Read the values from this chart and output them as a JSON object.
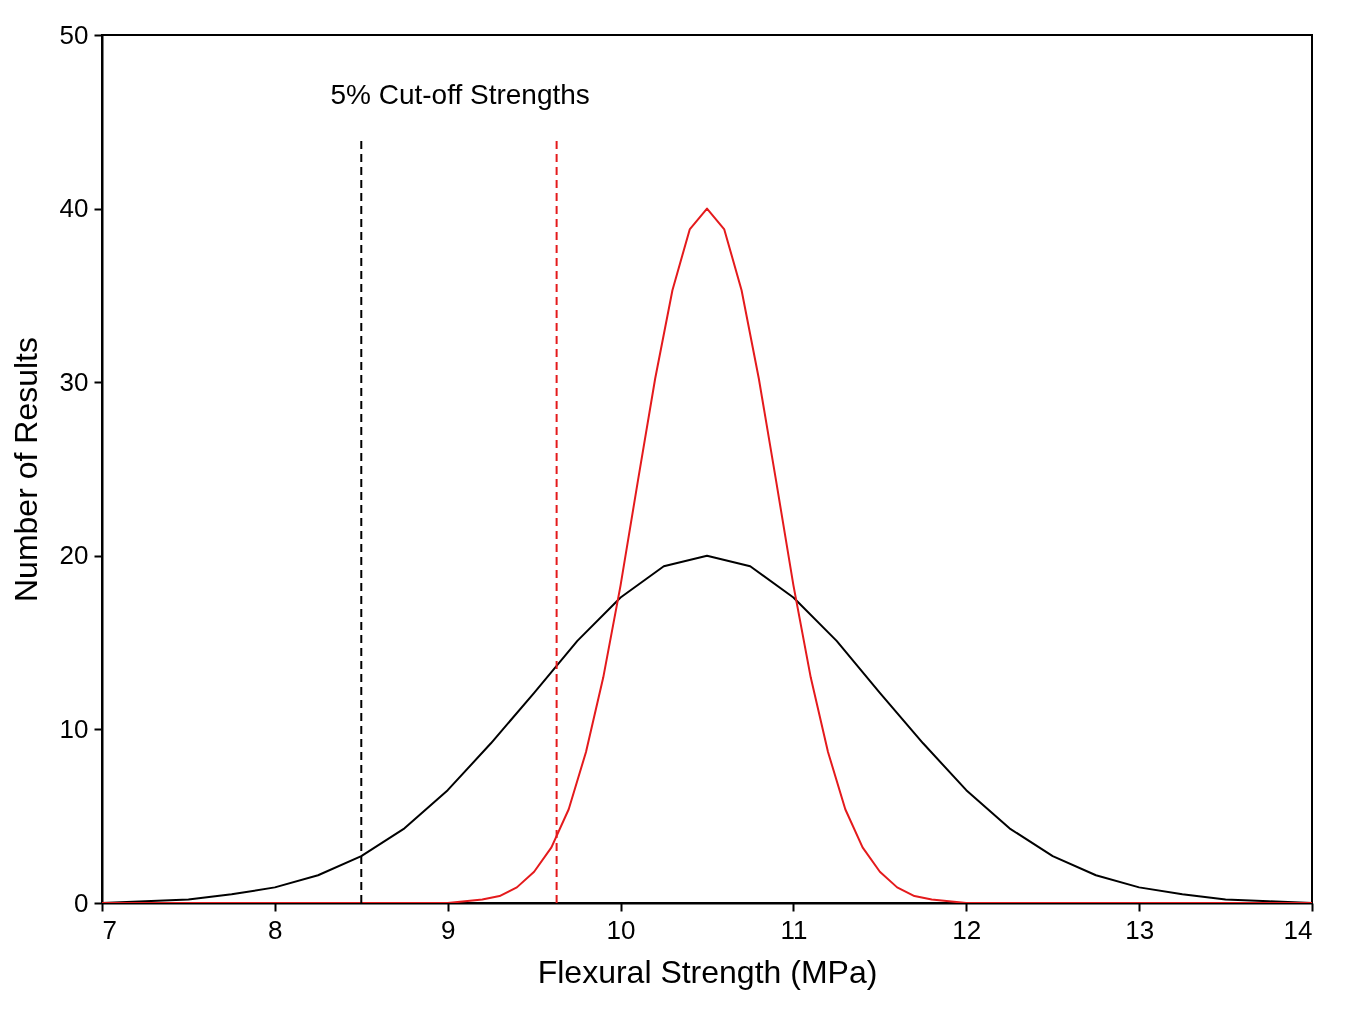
{
  "chart_data": {
    "type": "line",
    "xlabel": "Flexural Strength (MPa)",
    "ylabel": "Number of Results",
    "xlim": [
      7,
      14
    ],
    "ylim": [
      0,
      50
    ],
    "xticks": [
      7,
      8,
      9,
      10,
      11,
      12,
      13,
      14
    ],
    "yticks": [
      0,
      10,
      20,
      30,
      40,
      50
    ],
    "grid": false,
    "marker": "none",
    "annotations": [
      "5% Cut-off Strengths"
    ],
    "series": [
      {
        "color": "#000000",
        "line_style": "solid",
        "x": [
          7,
          7.25,
          7.5,
          7.75,
          8,
          8.25,
          8.5,
          8.75,
          9,
          9.25,
          9.5,
          9.75,
          10,
          10.25,
          10.5,
          10.75,
          11,
          11.25,
          11.5,
          11.75,
          12,
          12.25,
          12.5,
          12.75,
          13,
          13.25,
          13.5,
          13.75,
          14
        ],
        "values": [
          0,
          0.1,
          0.2,
          0.5,
          0.9,
          1.6,
          2.7,
          4.3,
          6.5,
          9.2,
          12.1,
          15.1,
          17.6,
          19.4,
          20,
          19.4,
          17.6,
          15.1,
          12.1,
          9.2,
          6.5,
          4.3,
          2.7,
          1.6,
          0.9,
          0.5,
          0.2,
          0.1,
          0
        ]
      },
      {
        "color": "#e41a1c",
        "line_style": "solid",
        "x": [
          7,
          8,
          9,
          9.1,
          9.2,
          9.3,
          9.4,
          9.5,
          9.6,
          9.7,
          9.8,
          9.9,
          10,
          10.1,
          10.2,
          10.3,
          10.4,
          10.5,
          10.6,
          10.7,
          10.8,
          10.9,
          11,
          11.1,
          11.2,
          11.3,
          11.4,
          11.5,
          11.6,
          11.7,
          11.8,
          11.9,
          12,
          13,
          14
        ],
        "values": [
          0,
          0,
          0,
          0.1,
          0.2,
          0.4,
          0.9,
          1.8,
          3.2,
          5.4,
          8.7,
          13.0,
          18.3,
          24.3,
          30.2,
          35.3,
          38.8,
          40,
          38.8,
          35.3,
          30.2,
          24.3,
          18.3,
          13.0,
          8.7,
          5.4,
          3.2,
          1.8,
          0.9,
          0.4,
          0.2,
          0.1,
          0,
          0,
          0
        ]
      },
      {
        "color": "#000000",
        "line_style": "dashed",
        "x": [
          8.5,
          8.5
        ],
        "values": [
          0,
          44
        ]
      },
      {
        "color": "#e41a1c",
        "line_style": "dashed",
        "x": [
          9.63,
          9.63
        ],
        "values": [
          0,
          44
        ]
      }
    ]
  }
}
